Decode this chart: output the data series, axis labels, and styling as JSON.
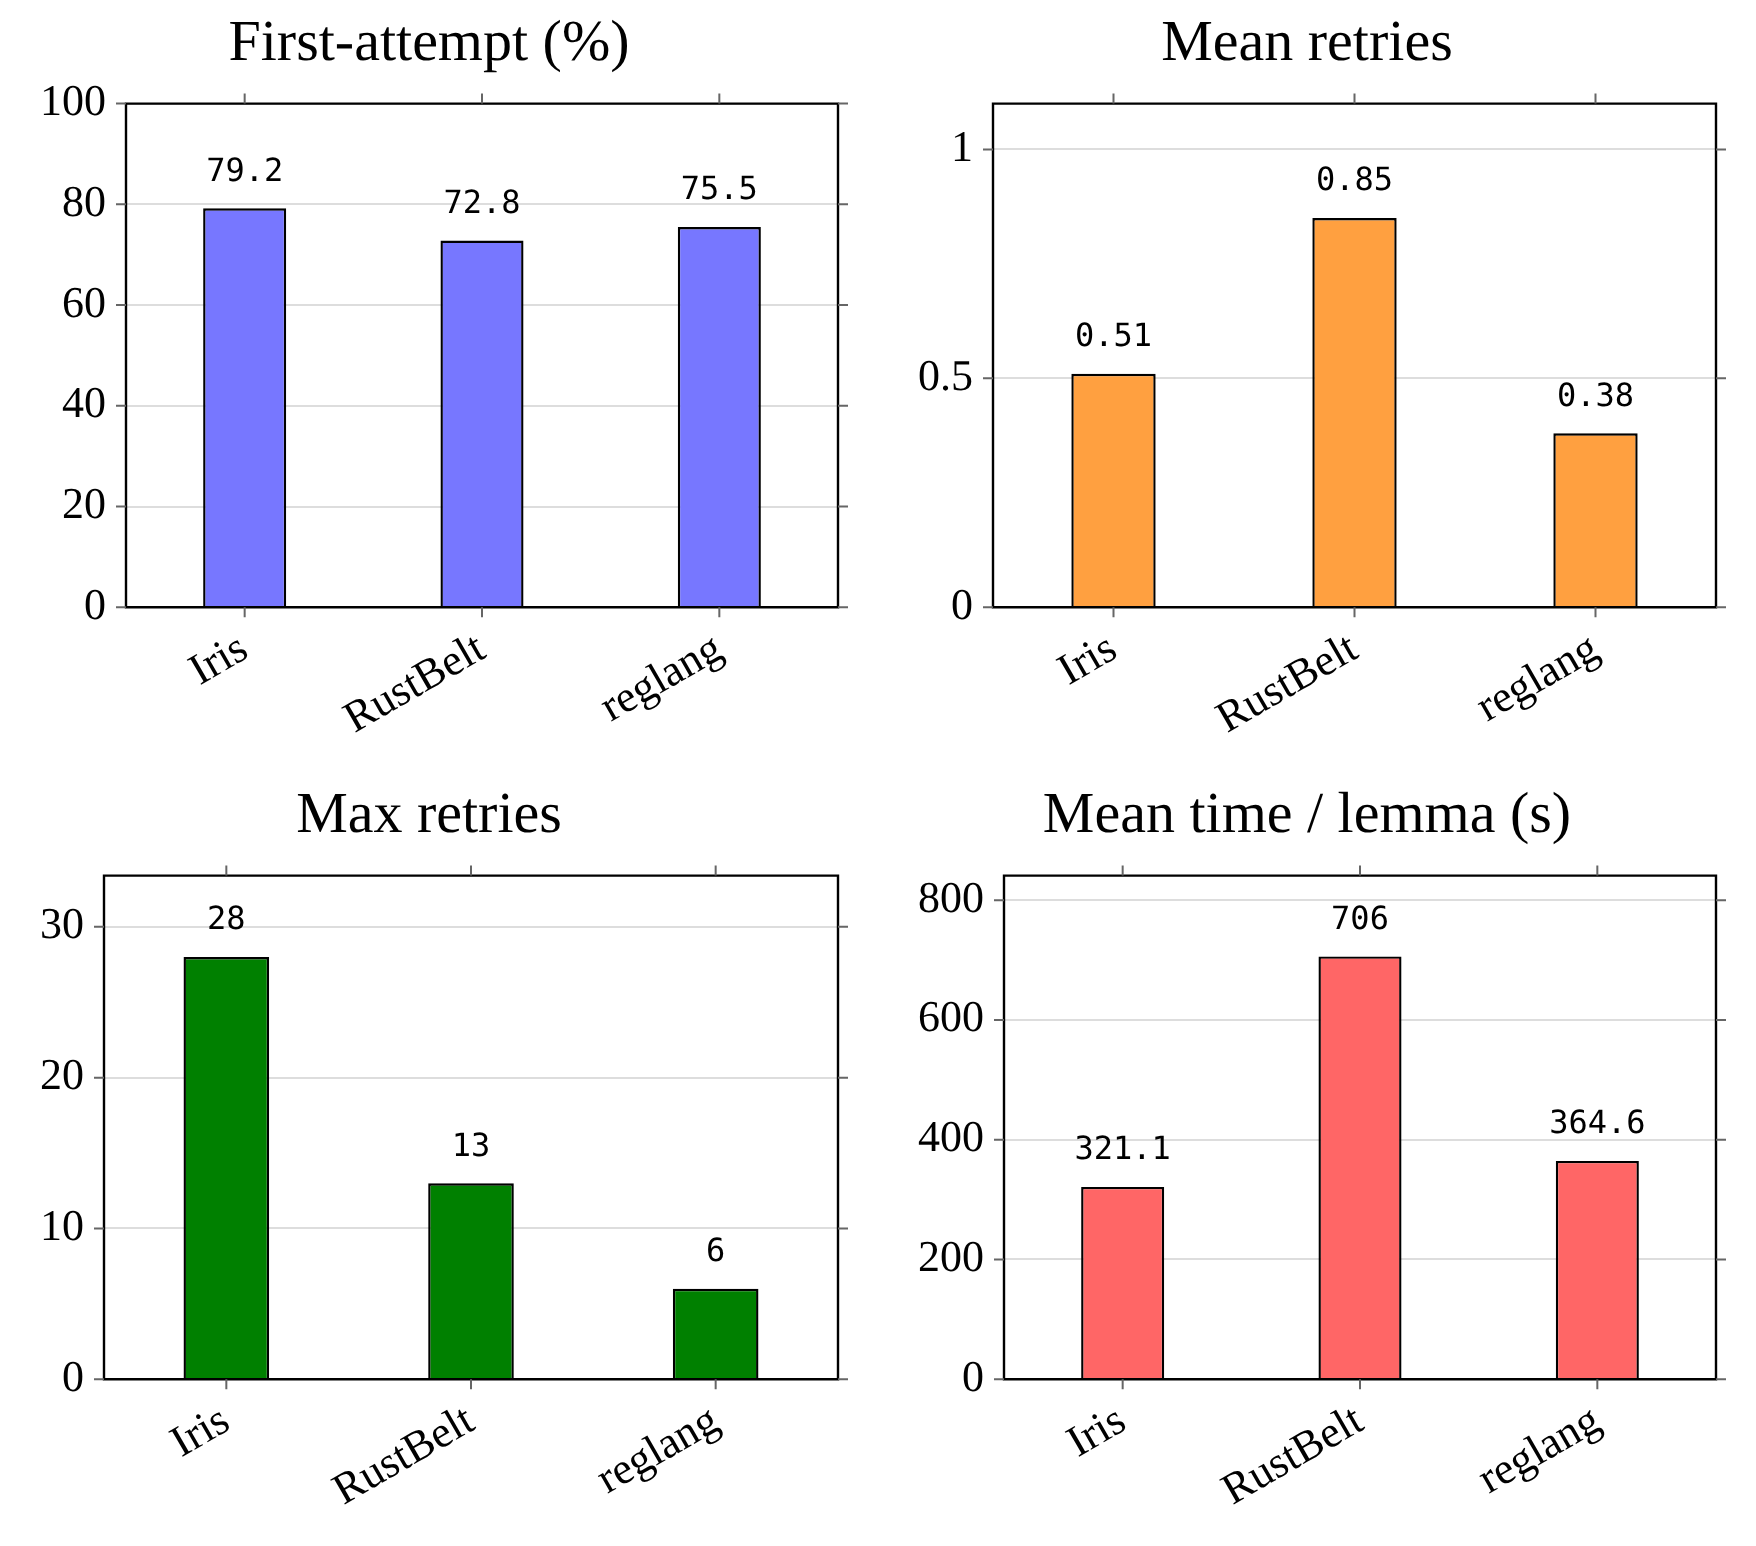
{
  "chart_data": [
    {
      "type": "bar",
      "title": "First-attempt (%)",
      "categories": [
        "Iris",
        "RustBelt",
        "reglang"
      ],
      "values": [
        79.2,
        72.8,
        75.5
      ],
      "color": "#7777ff",
      "ylim": [
        0,
        100
      ],
      "yticks": [
        0,
        20,
        40,
        60,
        80,
        100
      ],
      "grid": "y",
      "data_labels": true
    },
    {
      "type": "bar",
      "title": "Mean retries",
      "categories": [
        "Iris",
        "RustBelt",
        "reglang"
      ],
      "values": [
        0.51,
        0.85,
        0.38
      ],
      "color": "#ffa040",
      "ylim": [
        0,
        1.1
      ],
      "yticks": [
        0,
        0.5,
        1
      ],
      "grid": "y",
      "data_labels": true
    },
    {
      "type": "bar",
      "title": "Max retries",
      "categories": [
        "Iris",
        "RustBelt",
        "reglang"
      ],
      "values": [
        28,
        13,
        6
      ],
      "color": "#008000",
      "ylim": [
        0,
        33.4
      ],
      "yticks": [
        0,
        10,
        20,
        30
      ],
      "grid": "y",
      "data_labels": true
    },
    {
      "type": "bar",
      "title": "Mean time / lemma (s)",
      "categories": [
        "Iris",
        "RustBelt",
        "reglang"
      ],
      "values": [
        321.1,
        706,
        364.6
      ],
      "color": "#ff6666",
      "ylim": [
        0,
        841
      ],
      "yticks": [
        0,
        200,
        400,
        600,
        800
      ],
      "grid": "y",
      "data_labels": true
    }
  ]
}
